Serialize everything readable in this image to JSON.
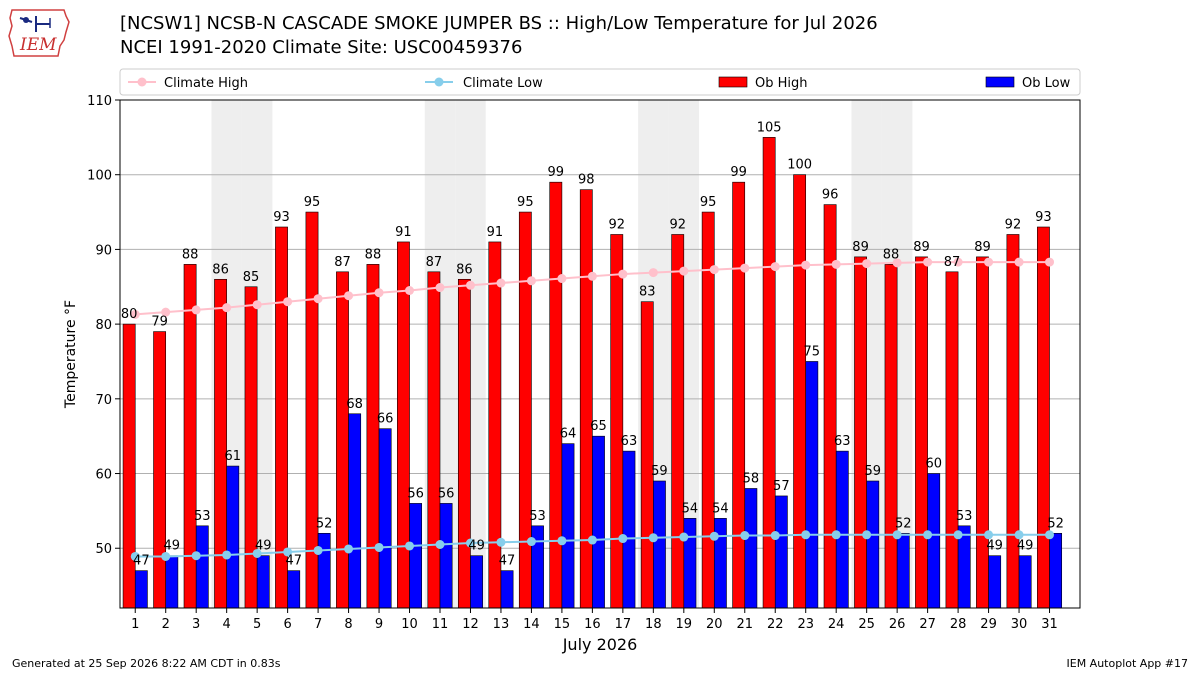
{
  "header": {
    "title_line1": "[NCSW1] NCSB-N CASCADE SMOKE JUMPER BS :: High/Low Temperature for Jul 2026",
    "title_line2": "NCEI 1991-2020 Climate Site: USC00459376"
  },
  "logo": {
    "text": "IEM"
  },
  "footer": {
    "left": "Generated at 25 Sep 2026 8:22 AM CDT in 0.83s",
    "right": "IEM Autoplot App #17"
  },
  "colors": {
    "ob_high": "#ff0000",
    "ob_low": "#0000ff",
    "climate_high": "#ffc0cb",
    "climate_low": "#87ceeb",
    "weekend_shade": "#eeeeee"
  },
  "chart_data": {
    "type": "bar",
    "xlabel": "July 2026",
    "ylabel": "Temperature °F",
    "ylim": [
      42,
      110
    ],
    "yticks": [
      50,
      60,
      70,
      80,
      90,
      100,
      110
    ],
    "categories": [
      "1",
      "2",
      "3",
      "4",
      "5",
      "6",
      "7",
      "8",
      "9",
      "10",
      "11",
      "12",
      "13",
      "14",
      "15",
      "16",
      "17",
      "18",
      "19",
      "20",
      "21",
      "22",
      "23",
      "24",
      "25",
      "26",
      "27",
      "28",
      "29",
      "30",
      "31"
    ],
    "shaded_days": [
      4,
      5,
      11,
      12,
      18,
      19,
      25,
      26
    ],
    "legend_position": "top",
    "series": [
      {
        "name": "Climate High",
        "kind": "line",
        "values": [
          81.3,
          81.6,
          81.9,
          82.2,
          82.6,
          83.0,
          83.4,
          83.8,
          84.2,
          84.5,
          84.9,
          85.2,
          85.5,
          85.8,
          86.1,
          86.4,
          86.7,
          86.9,
          87.1,
          87.3,
          87.5,
          87.7,
          87.9,
          88.0,
          88.1,
          88.2,
          88.3,
          88.3,
          88.3,
          88.3,
          88.3
        ]
      },
      {
        "name": "Climate Low",
        "kind": "line",
        "values": [
          48.9,
          48.9,
          49.0,
          49.1,
          49.3,
          49.5,
          49.7,
          49.9,
          50.1,
          50.3,
          50.5,
          50.7,
          50.8,
          50.9,
          51.0,
          51.1,
          51.3,
          51.4,
          51.5,
          51.6,
          51.7,
          51.7,
          51.8,
          51.8,
          51.8,
          51.8,
          51.8,
          51.8,
          51.8,
          51.8,
          51.8
        ]
      },
      {
        "name": "Ob High",
        "kind": "bar",
        "values": [
          80,
          79,
          88,
          86,
          85,
          93,
          95,
          87,
          88,
          91,
          87,
          86,
          91,
          95,
          99,
          98,
          92,
          83,
          92,
          95,
          99,
          105,
          100,
          96,
          89,
          88,
          89,
          87,
          89,
          92,
          93
        ]
      },
      {
        "name": "Ob Low",
        "kind": "bar",
        "values": [
          47,
          49,
          53,
          61,
          49,
          47,
          52,
          68,
          66,
          56,
          56,
          49,
          47,
          53,
          64,
          65,
          63,
          59,
          54,
          54,
          58,
          57,
          75,
          63,
          59,
          52,
          60,
          53,
          49,
          49,
          52
        ]
      }
    ]
  }
}
